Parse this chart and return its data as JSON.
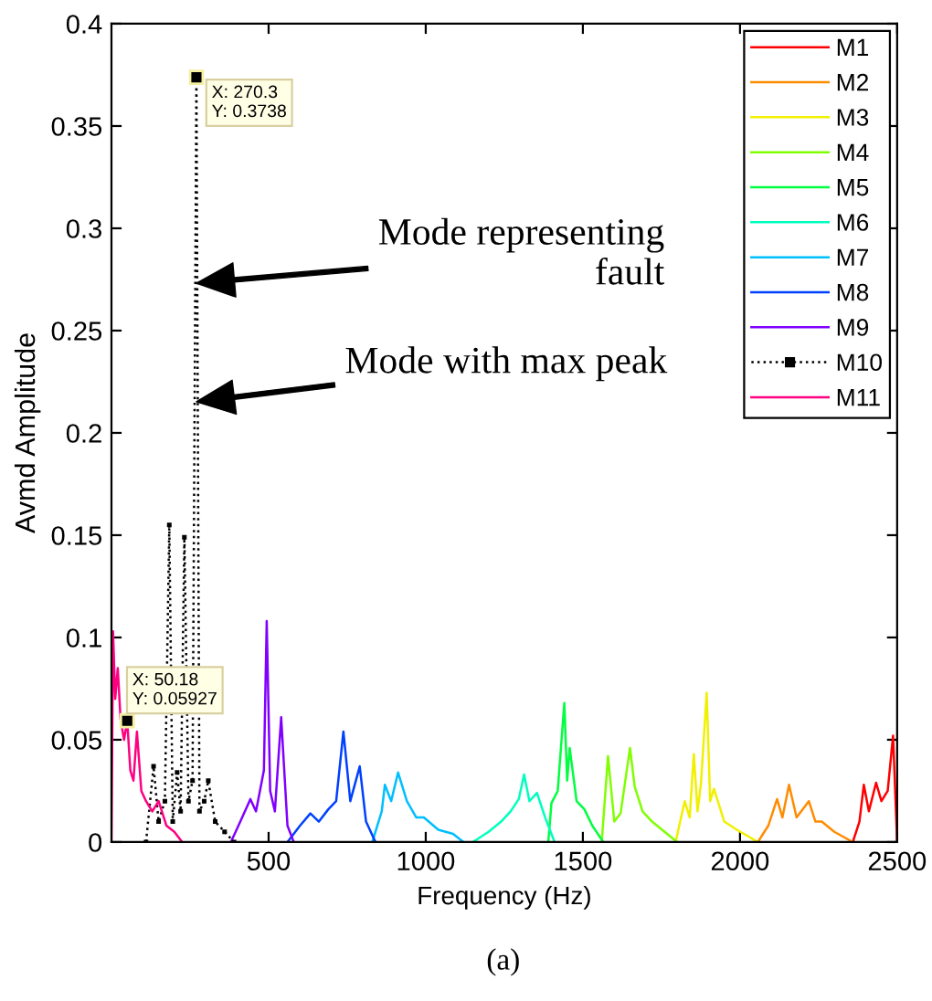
{
  "chart_data": {
    "type": "line",
    "xlabel": "Frequency (Hz)",
    "ylabel": "Avmd Amplitude",
    "xlim": [
      0,
      2500
    ],
    "xticks": [
      500,
      1000,
      1500,
      2000,
      2500
    ],
    "ylim": [
      0,
      0.4
    ],
    "yticks": [
      0,
      0.05,
      0.1,
      0.15,
      0.2,
      0.25,
      0.3,
      0.35,
      0.4
    ],
    "grid": false,
    "legend": "top right",
    "series": [
      {
        "name": "M1",
        "color": "#ff0000",
        "x": [
          2359,
          2380,
          2394,
          2410,
          2433,
          2450,
          2470,
          2487,
          2495,
          2500
        ],
        "values": [
          0,
          0.01,
          0.028,
          0.015,
          0.029,
          0.02,
          0.025,
          0.052,
          0.02,
          0
        ]
      },
      {
        "name": "M2",
        "color": "#ff8c00",
        "x": [
          2057,
          2090,
          2118,
          2135,
          2156,
          2180,
          2219,
          2240,
          2260,
          2300,
          2359
        ],
        "values": [
          0,
          0.008,
          0.021,
          0.012,
          0.028,
          0.012,
          0.02,
          0.01,
          0.01,
          0.005,
          0
        ]
      },
      {
        "name": "M3",
        "color": "#f0f000",
        "x": [
          1795,
          1824,
          1840,
          1853,
          1865,
          1876,
          1894,
          1905,
          1917,
          1950,
          1990,
          2057
        ],
        "values": [
          0,
          0.02,
          0.012,
          0.043,
          0.015,
          0.029,
          0.073,
          0.02,
          0.026,
          0.01,
          0.006,
          0
        ]
      },
      {
        "name": "M4",
        "color": "#80ff00",
        "x": [
          1560,
          1580,
          1600,
          1620,
          1650,
          1665,
          1690,
          1720,
          1760,
          1800
        ],
        "values": [
          0,
          0.042,
          0.01,
          0.014,
          0.046,
          0.027,
          0.015,
          0.01,
          0.005,
          0
        ]
      },
      {
        "name": "M5",
        "color": "#00ff40",
        "x": [
          1390,
          1400,
          1420,
          1441,
          1450,
          1458,
          1480,
          1505,
          1530,
          1565
        ],
        "values": [
          0,
          0.019,
          0.025,
          0.068,
          0.03,
          0.046,
          0.02,
          0.016,
          0.008,
          0
        ]
      },
      {
        "name": "M6",
        "color": "#00ffbf",
        "x": [
          1150,
          1200,
          1240,
          1270,
          1296,
          1313,
          1330,
          1354,
          1380,
          1410
        ],
        "values": [
          0,
          0.005,
          0.01,
          0.015,
          0.021,
          0.033,
          0.02,
          0.024,
          0.012,
          0
        ]
      },
      {
        "name": "M7",
        "color": "#00bfff",
        "x": [
          830,
          860,
          870,
          890,
          912,
          940,
          970,
          994,
          1040,
          1087,
          1120
        ],
        "values": [
          0,
          0.015,
          0.028,
          0.02,
          0.034,
          0.02,
          0.012,
          0.012,
          0.006,
          0.004,
          0
        ]
      },
      {
        "name": "M8",
        "color": "#0040ff",
        "x": [
          560,
          600,
          633,
          660,
          690,
          715,
          738,
          760,
          790,
          810,
          840
        ],
        "values": [
          0,
          0.008,
          0.014,
          0.01,
          0.016,
          0.02,
          0.054,
          0.02,
          0.037,
          0.01,
          0
        ]
      },
      {
        "name": "M9",
        "color": "#8000ff",
        "x": [
          380,
          410,
          442,
          460,
          485,
          494,
          505,
          520,
          540,
          560,
          580
        ],
        "values": [
          0,
          0.01,
          0.021,
          0.015,
          0.035,
          0.108,
          0.025,
          0.015,
          0.061,
          0.008,
          0
        ]
      },
      {
        "name": "M10",
        "color": "#000000",
        "line_style": "dotted",
        "marker": "square",
        "x": [
          110,
          134,
          150,
          170,
          184,
          195,
          209,
          220,
          232,
          245,
          258,
          270.3,
          280,
          295,
          308,
          330,
          360,
          390
        ],
        "values": [
          0,
          0.037,
          0.01,
          0.02,
          0.155,
          0.01,
          0.034,
          0.015,
          0.149,
          0.02,
          0.03,
          0.3738,
          0.015,
          0.02,
          0.03,
          0.01,
          0.005,
          0
        ]
      },
      {
        "name": "M11",
        "color": "#ff0080",
        "x": [
          0,
          5,
          12,
          20,
          29,
          40,
          50.18,
          60,
          70,
          81,
          95,
          110,
          130,
          150,
          175,
          200,
          225
        ],
        "values": [
          0,
          0.103,
          0.07,
          0.085,
          0.06,
          0.05,
          0.05927,
          0.035,
          0.03,
          0.054,
          0.025,
          0.02,
          0.015,
          0.02,
          0.008,
          0.005,
          0
        ]
      }
    ],
    "annotations": [
      {
        "text": "X: 270.3\nY: 0.3738",
        "x": 270.3,
        "y": 0.3738
      },
      {
        "text": "X: 50.18\nY: 0.05927",
        "x": 50.18,
        "y": 0.05927
      },
      "Mode representing\nfault",
      "Mode with max peak",
      "(a)"
    ]
  }
}
